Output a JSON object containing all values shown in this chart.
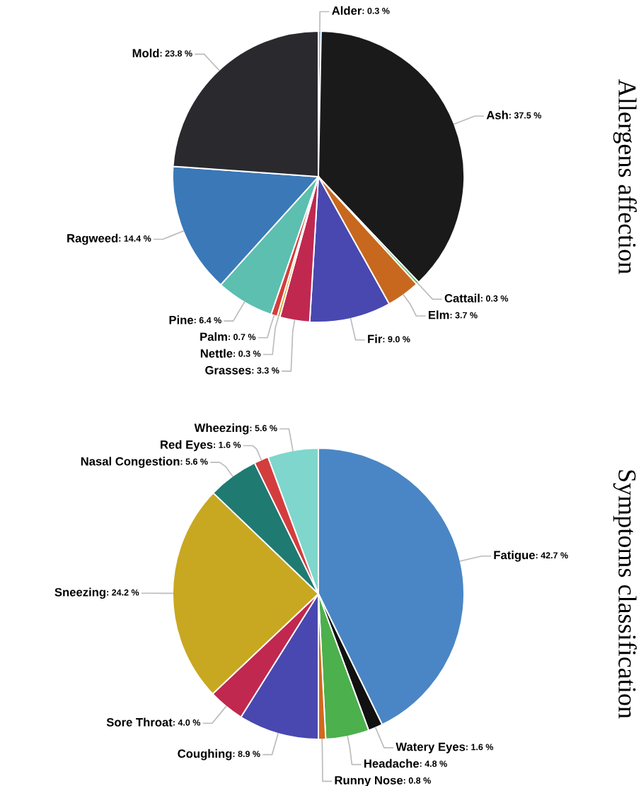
{
  "chart_data": [
    {
      "type": "pie",
      "title": "Allergens affection",
      "categories": [
        "Alder",
        "Ash",
        "Cattail",
        "Elm",
        "Fir",
        "Grasses",
        "Nettle",
        "Palm",
        "Pine",
        "Ragweed",
        "Mold"
      ],
      "values": [
        0.3,
        37.5,
        0.3,
        3.7,
        9.0,
        3.3,
        0.3,
        0.7,
        6.4,
        14.4,
        23.8
      ],
      "value_labels": [
        ": 0.3 %",
        ": 37.5 %",
        ": 0.3 %",
        ": 3.7 %",
        ": 9.0 %",
        ": 3.3 %",
        ": 0.3 %",
        ": 0.7 %",
        ": 6.4 %",
        ": 14.4 %",
        ": 23.8 %"
      ],
      "colors": [
        "#6fa8dc",
        "#1a1a1a",
        "#5cb85c",
        "#c8681e",
        "#4848b0",
        "#c02850",
        "#c8a820",
        "#d43d3d",
        "#5cbfb0",
        "#3a78b8",
        "#2a2a2e"
      ]
    },
    {
      "type": "pie",
      "title": "Symptoms classification",
      "categories": [
        "Fatigue",
        "Watery Eyes",
        "Headache",
        "Runny Nose",
        "Coughing",
        "Sore Throat",
        "Sneezing",
        "Nasal Congestion",
        "Red Eyes",
        "Wheezing"
      ],
      "values": [
        42.7,
        1.6,
        4.8,
        0.8,
        8.9,
        4.0,
        24.2,
        5.6,
        1.6,
        5.6
      ],
      "value_labels": [
        ": 42.7 %",
        ": 1.6 %",
        ": 4.8 %",
        ": 0.8 %",
        ": 8.9 %",
        ": 4.0 %",
        ": 24.2 %",
        ": 5.6 %",
        ": 1.6 %",
        ": 5.6 %"
      ],
      "colors": [
        "#4a86c5",
        "#111111",
        "#4cb04c",
        "#d2691e",
        "#4848b0",
        "#c02850",
        "#c8a820",
        "#1f7a72",
        "#d43d3d",
        "#7fd6cc"
      ]
    }
  ]
}
